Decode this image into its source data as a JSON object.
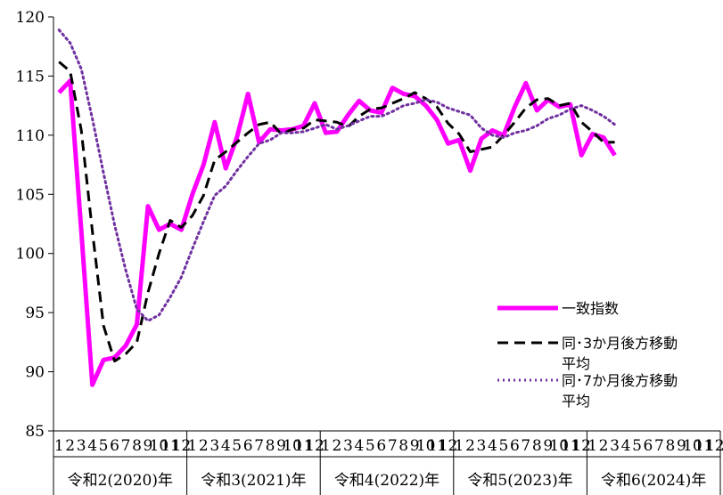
{
  "chart_data": {
    "type": "line",
    "ylim": [
      85,
      120
    ],
    "yticks": [
      85,
      90,
      95,
      100,
      105,
      110,
      115,
      120
    ],
    "grid": false,
    "legend_position": "right",
    "months": [
      "1",
      "2",
      "3",
      "4",
      "5",
      "6",
      "7",
      "8",
      "9",
      "10",
      "11",
      "12"
    ],
    "year_groups": [
      {
        "label": "令和2(2020)年"
      },
      {
        "label": "令和3(2021)年"
      },
      {
        "label": "令和4(2022)年"
      },
      {
        "label": "令和5(2023)年"
      },
      {
        "label": "令和6(2024)年"
      }
    ],
    "x_unit": "month index from 令和2(2020)年1月 (1-based)",
    "series": [
      {
        "name": "一致指数",
        "color": "#ff00ff",
        "style": "solid",
        "values": [
          113.6,
          114.6,
          101.9,
          88.9,
          91.0,
          91.2,
          92.2,
          94.0,
          104.0,
          102.0,
          102.5,
          102.0,
          105.0,
          107.5,
          111.1,
          107.2,
          109.8,
          113.5,
          109.4,
          110.5,
          110.4,
          110.5,
          110.8,
          112.7,
          110.2,
          110.3,
          111.7,
          112.9,
          112.1,
          111.9,
          114.0,
          113.5,
          113.3,
          112.5,
          111.3,
          109.3,
          109.6,
          107.0,
          109.7,
          110.4,
          110.0,
          112.4,
          114.4,
          112.1,
          113.0,
          112.4,
          112.6,
          108.3,
          110.1,
          109.8,
          108.3
        ]
      },
      {
        "name": "同･3か月後方移動平均",
        "color": "#000000",
        "style": "dashed",
        "values": [
          116.2,
          115.4,
          110.4,
          101.9,
          93.9,
          90.9,
          91.5,
          92.5,
          96.7,
          100.0,
          102.8,
          102.2,
          103.2,
          104.9,
          107.9,
          108.6,
          109.4,
          110.2,
          110.9,
          111.1,
          110.1,
          110.5,
          110.6,
          111.3,
          111.2,
          111.1,
          110.7,
          111.6,
          112.2,
          112.3,
          112.7,
          113.1,
          113.6,
          113.1,
          112.4,
          111.0,
          110.1,
          108.6,
          108.8,
          109.0,
          110.0,
          111.1,
          112.3,
          113.0,
          113.1,
          112.5,
          112.7,
          111.1,
          110.3,
          109.4,
          109.4
        ]
      },
      {
        "name": "同･7か月後方移動平均",
        "color": "#7030a0",
        "style": "dotted",
        "values": [
          118.9,
          117.8,
          115.6,
          111.4,
          106.8,
          102.4,
          98.6,
          95.3,
          94.3,
          94.8,
          96.3,
          98.0,
          100.4,
          102.7,
          104.9,
          105.7,
          107.0,
          108.2,
          109.3,
          109.6,
          110.2,
          110.2,
          110.3,
          110.6,
          110.9,
          110.5,
          110.8,
          111.2,
          111.6,
          111.6,
          112.0,
          112.5,
          112.7,
          113.0,
          112.8,
          112.3,
          112.0,
          111.7,
          110.6,
          110.0,
          109.8,
          110.2,
          110.4,
          110.8,
          111.4,
          111.7,
          112.2,
          112.5,
          112.1,
          111.6,
          110.9
        ]
      }
    ]
  },
  "legend": {
    "items": [
      {
        "label": "一致指数",
        "color": "#ff00ff",
        "style": "solid"
      },
      {
        "label_line1": "同･3か月後方移動",
        "label_line2": "平均",
        "color": "#000000",
        "style": "dashed"
      },
      {
        "label_line1": "同･7か月後方移動",
        "label_line2": "平均",
        "color": "#7030a0",
        "style": "dotted"
      }
    ]
  }
}
